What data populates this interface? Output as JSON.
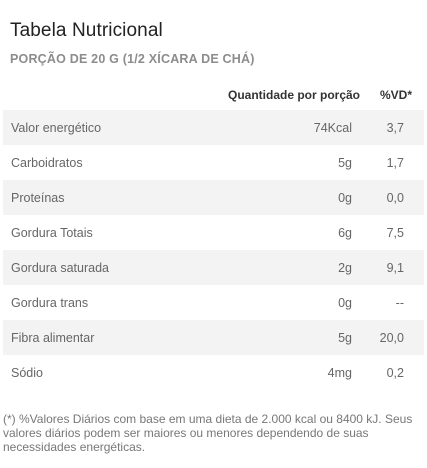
{
  "title": "Tabela Nutricional",
  "portion": "PORÇÃO DE 20 G (1/2 XÍCARA DE CHÁ)",
  "table": {
    "header": {
      "quantity": "Quantidade por porção",
      "daily_value": "%VD*"
    },
    "rows": [
      {
        "name": "Valor energético",
        "quantity": "74Kcal",
        "daily_value": "3,7"
      },
      {
        "name": "Carboidratos",
        "quantity": "5g",
        "daily_value": "1,7"
      },
      {
        "name": "Proteínas",
        "quantity": "0g",
        "daily_value": "0,0"
      },
      {
        "name": "Gordura Totais",
        "quantity": "6g",
        "daily_value": "7,5"
      },
      {
        "name": "Gordura saturada",
        "quantity": "2g",
        "daily_value": "9,1"
      },
      {
        "name": "Gordura trans",
        "quantity": "0g",
        "daily_value": "--"
      },
      {
        "name": "Fibra alimentar",
        "quantity": "5g",
        "daily_value": "20,0"
      },
      {
        "name": "Sódio",
        "quantity": "4mg",
        "daily_value": "0,2"
      }
    ]
  },
  "footnote": "(*) %Valores Diários com base em uma dieta de 2.000 kcal ou 8400 kJ. Seus valores diários podem ser maiores ou menores dependendo de suas necessidades energéticas.",
  "colors": {
    "row_shade": "#f3f3f3",
    "title": "#222222",
    "subtitle": "#8c8c8c"
  }
}
